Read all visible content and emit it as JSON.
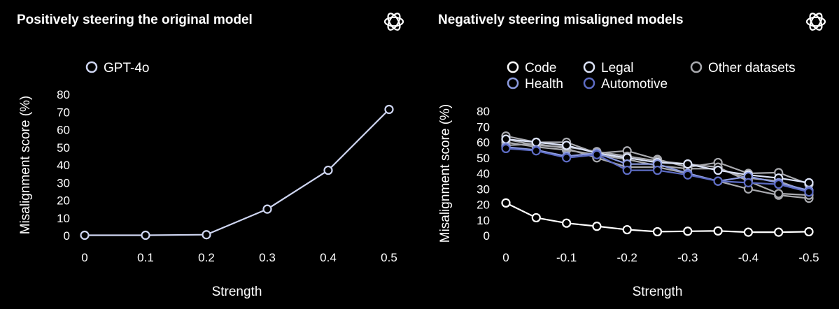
{
  "left_panel": {
    "title": "Positively steering the original model",
    "logo_icon": "openai-logo-icon"
  },
  "right_panel": {
    "title": "Negatively steering misaligned models",
    "logo_icon": "openai-logo-icon"
  },
  "chart_data": [
    {
      "type": "line",
      "xlabel": "Strength",
      "ylabel": "Misalignment score (%)",
      "xlim": [
        0,
        0.5
      ],
      "ylim": [
        0,
        80
      ],
      "xticks": [
        "0",
        "0.1",
        "0.2",
        "0.3",
        "0.4",
        "0.5"
      ],
      "yticks": [
        "0",
        "10",
        "20",
        "30",
        "40",
        "50",
        "60",
        "70",
        "80"
      ],
      "grid": false,
      "legend_position": "top-left",
      "x": [
        0,
        0.1,
        0.2,
        0.3,
        0.4,
        0.5
      ],
      "series": [
        {
          "name": "GPT-4o",
          "color": "#cfd6f2",
          "values": [
            0.2,
            0.2,
            0.5,
            15,
            37,
            71.5
          ]
        }
      ]
    },
    {
      "type": "line",
      "xlabel": "Strength",
      "ylabel": "Misalignment score (%)",
      "xlim": [
        0,
        -0.5
      ],
      "ylim": [
        0,
        80
      ],
      "xticks": [
        "0",
        "-0.1",
        "-0.2",
        "-0.3",
        "-0.4",
        "-0.5"
      ],
      "yticks": [
        "0",
        "10",
        "20",
        "30",
        "40",
        "50",
        "60",
        "70",
        "80"
      ],
      "grid": false,
      "legend_position": "top",
      "x": [
        0,
        -0.05,
        -0.1,
        -0.15,
        -0.2,
        -0.25,
        -0.3,
        -0.35,
        -0.4,
        -0.45,
        -0.5
      ],
      "legend": [
        {
          "name": "Code",
          "color": "#ffffff"
        },
        {
          "name": "Legal",
          "color": "#dce3f8"
        },
        {
          "name": "Other datasets",
          "color": "#a9aaaf"
        },
        {
          "name": "Health",
          "color": "#8c9be0"
        },
        {
          "name": "Automotive",
          "color": "#5d6cc4"
        }
      ],
      "series": [
        {
          "name": "Code",
          "color": "#ffffff",
          "values": [
            21,
            11.5,
            8,
            6,
            3.8,
            2.5,
            2.8,
            3,
            2.2,
            2.2,
            2.5
          ]
        },
        {
          "color": "#a9aaaf",
          "values": [
            64,
            60,
            60,
            53,
            54.5,
            49,
            44,
            47,
            40,
            40.5,
            33
          ]
        },
        {
          "color": "#a9aaaf",
          "values": [
            60,
            57,
            55,
            52,
            49,
            45,
            43,
            43,
            37,
            35,
            28
          ]
        },
        {
          "color": "#a9aaaf",
          "values": [
            58,
            59,
            56,
            50,
            44,
            44,
            40,
            35,
            30,
            26,
            24
          ]
        },
        {
          "color": "#a9aaaf",
          "values": [
            62,
            58,
            57,
            54,
            51,
            48,
            46,
            44,
            35,
            27,
            26
          ]
        },
        {
          "name": "Legal",
          "color": "#dce3f8",
          "values": [
            62,
            60,
            58,
            53,
            50,
            47,
            46,
            42,
            39,
            37,
            34
          ]
        },
        {
          "name": "Health",
          "color": "#8c9be0",
          "values": [
            57,
            55,
            51,
            53,
            46,
            46,
            40,
            35,
            38,
            34,
            29
          ]
        },
        {
          "name": "Automotive",
          "color": "#5d6cc4",
          "values": [
            56,
            54.5,
            50,
            52,
            42,
            42,
            39,
            35,
            34,
            33,
            28
          ]
        }
      ]
    }
  ]
}
